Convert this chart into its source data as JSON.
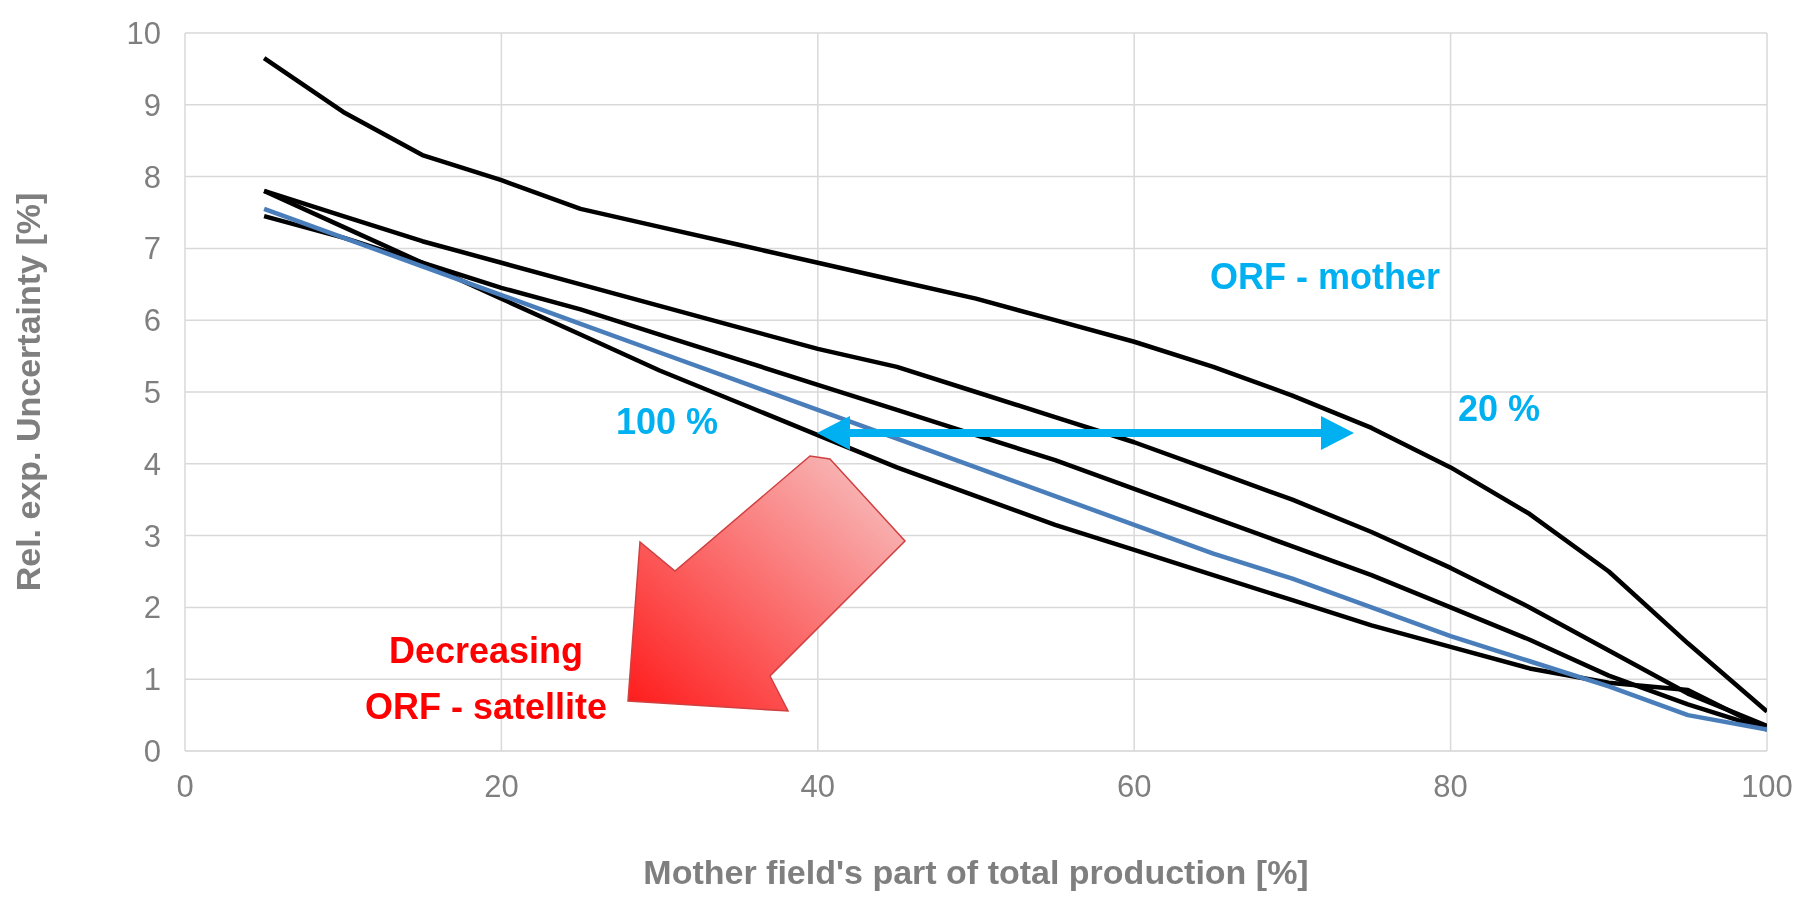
{
  "chart_data": {
    "type": "line",
    "xlabel": "Mother field's part of total production  [%]",
    "ylabel": "Rel. exp. Uncertainty  [%]",
    "x": [
      5,
      10,
      15,
      20,
      25,
      30,
      35,
      40,
      45,
      50,
      55,
      60,
      65,
      70,
      75,
      80,
      85,
      90,
      95,
      100
    ],
    "xlim": [
      0,
      100
    ],
    "xticks": [
      0,
      20,
      40,
      60,
      80,
      100
    ],
    "ylim": [
      0,
      10
    ],
    "yticks": [
      0,
      1,
      2,
      3,
      4,
      5,
      6,
      7,
      8,
      9,
      10
    ],
    "grid": true,
    "legend": false,
    "marker": "none",
    "line_style": "solid",
    "series": [
      {
        "color": "#000000",
        "values": [
          9.65,
          8.9,
          8.3,
          7.95,
          7.55,
          7.3,
          7.05,
          6.8,
          6.55,
          6.3,
          6.0,
          5.7,
          5.35,
          4.95,
          4.5,
          3.95,
          3.3,
          2.5,
          1.5,
          0.55
        ]
      },
      {
        "color": "#000000",
        "values": [
          7.8,
          7.45,
          7.1,
          6.8,
          6.5,
          6.2,
          5.9,
          5.6,
          5.35,
          5.0,
          4.65,
          4.3,
          3.9,
          3.5,
          3.05,
          2.55,
          2.0,
          1.4,
          0.8,
          0.35
        ]
      },
      {
        "color": "#000000",
        "values": [
          7.45,
          7.15,
          6.8,
          6.45,
          6.15,
          5.8,
          5.45,
          5.1,
          4.75,
          4.4,
          4.05,
          3.65,
          3.25,
          2.85,
          2.45,
          2.0,
          1.55,
          1.05,
          0.65,
          0.3
        ]
      },
      {
        "color": "#000000",
        "values": [
          7.8,
          7.3,
          6.8,
          6.3,
          5.8,
          5.3,
          4.85,
          4.4,
          3.95,
          3.55,
          3.15,
          2.8,
          2.45,
          2.1,
          1.75,
          1.45,
          1.15,
          0.95,
          0.85,
          0.3
        ]
      },
      {
        "color": "#4a7ebb",
        "values": [
          7.55,
          7.15,
          6.75,
          6.35,
          5.95,
          5.55,
          5.15,
          4.75,
          4.35,
          3.95,
          3.55,
          3.15,
          2.75,
          2.4,
          2.0,
          1.6,
          1.25,
          0.9,
          0.5,
          0.3
        ]
      }
    ],
    "annotations": [
      "ORF - mother",
      "100 %",
      "20 %",
      "Decreasing\nORF - satellite"
    ]
  }
}
